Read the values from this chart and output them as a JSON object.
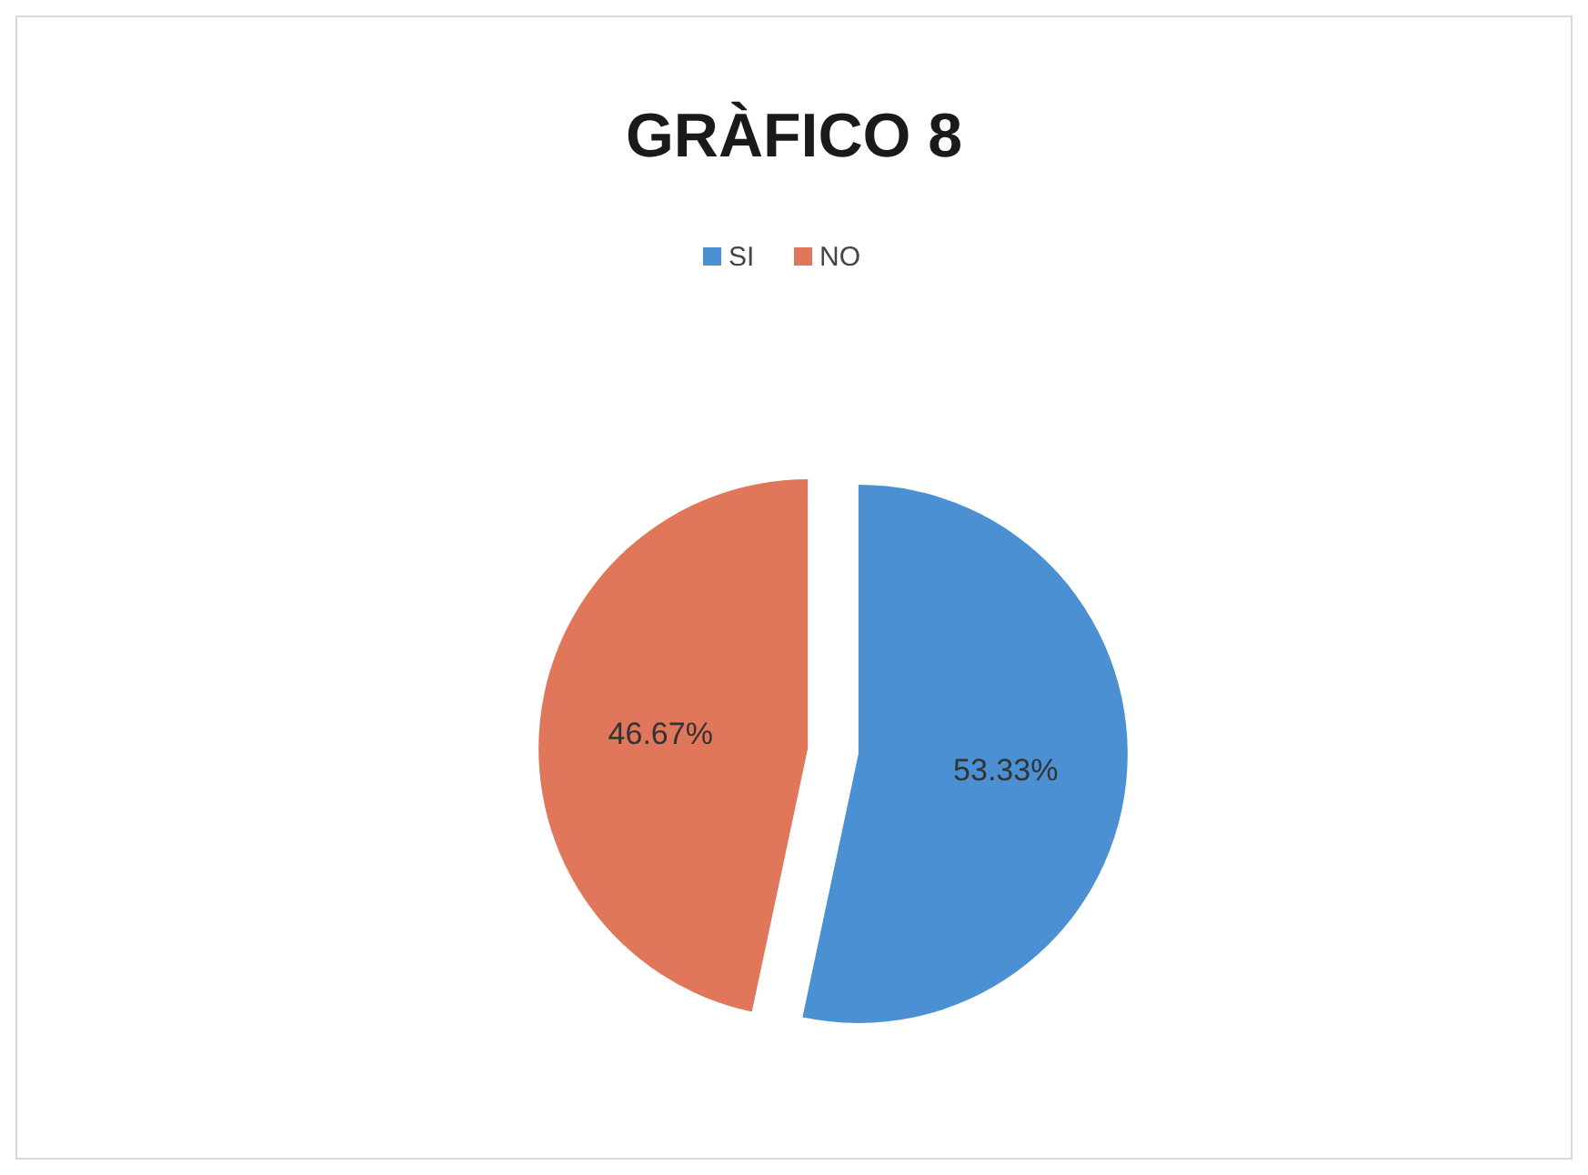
{
  "chart_data": {
    "type": "pie",
    "title": "GRÀFICO 8",
    "categories": [
      "SI",
      "NO"
    ],
    "values": [
      53.33,
      46.67
    ],
    "colors": [
      "#4a90d2",
      "#e0765a"
    ],
    "value_labels": [
      "53.33%",
      "46.67%"
    ],
    "legend": "top"
  }
}
